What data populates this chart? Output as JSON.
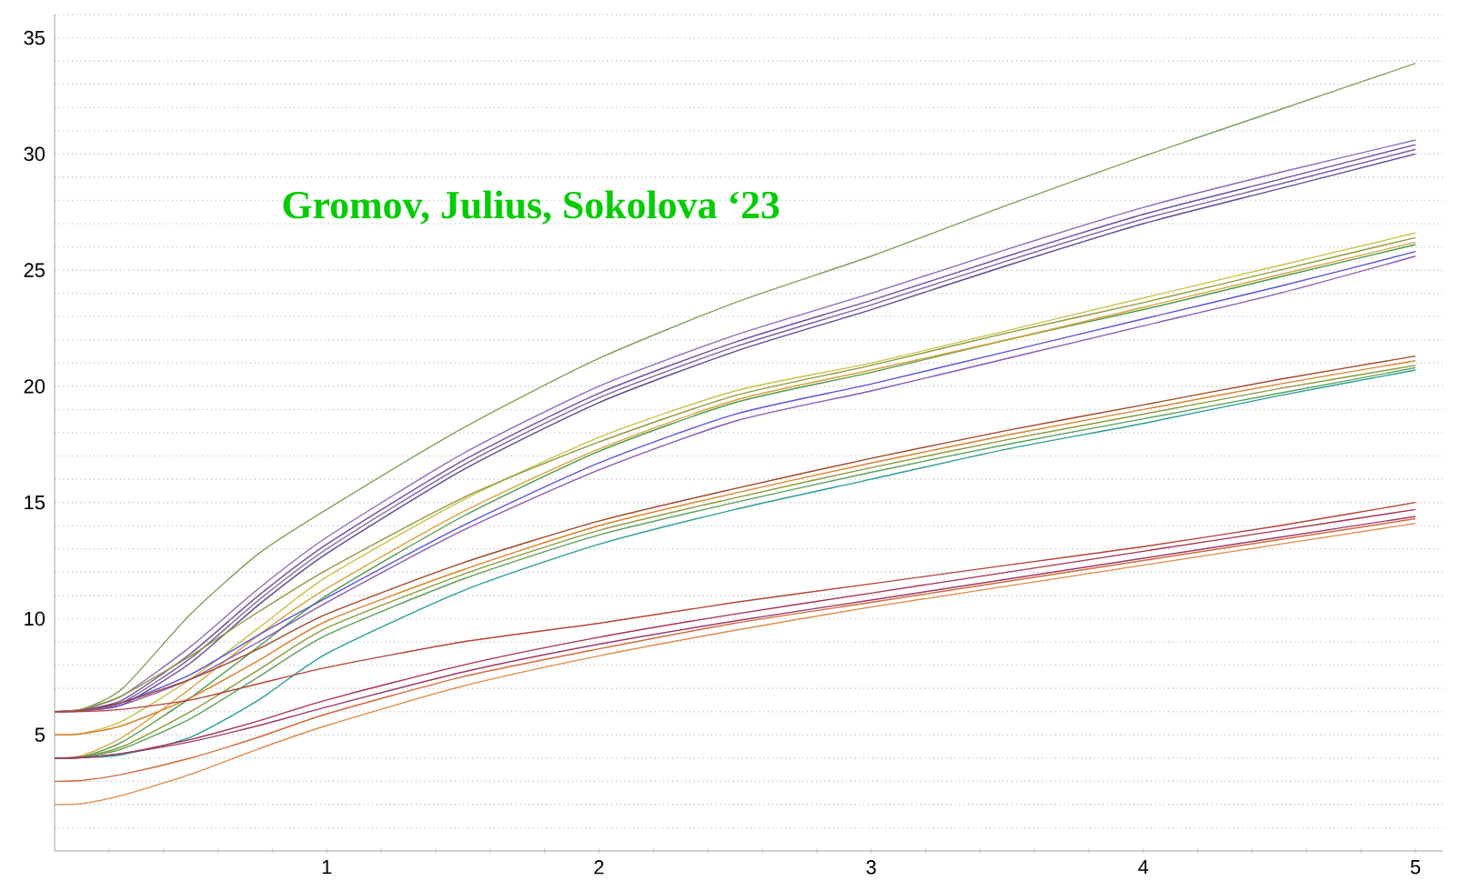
{
  "chart_data": {
    "type": "line",
    "title": "Gromov, Julius, Sokolova ‘23",
    "x": [
      0,
      0.1,
      0.25,
      0.5,
      0.75,
      1,
      1.5,
      2,
      2.5,
      3,
      3.5,
      4,
      4.5,
      5
    ],
    "xlim": [
      0,
      5.1
    ],
    "ylim": [
      0,
      36
    ],
    "xticks": [
      {
        "value": 0.2,
        "label": null
      },
      {
        "value": 0.4,
        "label": null
      },
      {
        "value": 0.6,
        "label": null
      },
      {
        "value": 0.8,
        "label": null
      },
      1,
      {
        "value": 1.2,
        "label": null
      },
      {
        "value": 1.4,
        "label": null
      },
      {
        "value": 1.6,
        "label": null
      },
      {
        "value": 1.8,
        "label": null
      },
      2,
      {
        "value": 2.2,
        "label": null
      },
      {
        "value": 2.4,
        "label": null
      },
      {
        "value": 2.6,
        "label": null
      },
      {
        "value": 2.8,
        "label": null
      },
      3,
      {
        "value": 3.2,
        "label": null
      },
      {
        "value": 3.4,
        "label": null
      },
      {
        "value": 3.6,
        "label": null
      },
      {
        "value": 3.8,
        "label": null
      },
      4,
      {
        "value": 4.2,
        "label": null
      },
      {
        "value": 4.4,
        "label": null
      },
      {
        "value": 4.6,
        "label": null
      },
      {
        "value": 4.8,
        "label": null
      },
      5
    ],
    "yticks": [
      {
        "value": 1,
        "label": null
      },
      {
        "value": 2,
        "label": null
      },
      {
        "value": 3,
        "label": null
      },
      {
        "value": 4,
        "label": null
      },
      5,
      {
        "value": 6,
        "label": null
      },
      {
        "value": 7,
        "label": null
      },
      {
        "value": 8,
        "label": null
      },
      {
        "value": 9,
        "label": null
      },
      10,
      {
        "value": 11,
        "label": null
      },
      {
        "value": 12,
        "label": null
      },
      {
        "value": 13,
        "label": null
      },
      {
        "value": 14,
        "label": null
      },
      15,
      {
        "value": 16,
        "label": null
      },
      {
        "value": 17,
        "label": null
      },
      {
        "value": 18,
        "label": null
      },
      {
        "value": 19,
        "label": null
      },
      20,
      {
        "value": 21,
        "label": null
      },
      {
        "value": 22,
        "label": null
      },
      {
        "value": 23,
        "label": null
      },
      {
        "value": 24,
        "label": null
      },
      25,
      {
        "value": 26,
        "label": null
      },
      {
        "value": 27,
        "label": null
      },
      {
        "value": 28,
        "label": null
      },
      {
        "value": 29,
        "label": null
      },
      30,
      {
        "value": 31,
        "label": null
      },
      {
        "value": 32,
        "label": null
      },
      {
        "value": 33,
        "label": null
      },
      {
        "value": 34,
        "label": null
      },
      35,
      {
        "value": 36,
        "label": null
      }
    ],
    "grid": "y",
    "marker": "none",
    "line_style": "solid",
    "series": [
      {
        "color": "#7fa35a",
        "values": [
          6,
          6.1,
          7.0,
          10.2,
          12.8,
          14.7,
          18.2,
          21.2,
          23.6,
          25.6,
          27.8,
          29.9,
          31.9,
          33.9
        ]
      },
      {
        "color": "#8a6bb8",
        "values": [
          6,
          6.1,
          6.7,
          8.8,
          11.3,
          13.5,
          17.1,
          20.0,
          22.2,
          24.0,
          25.9,
          27.7,
          29.2,
          30.6
        ]
      },
      {
        "color": "#6a52a3",
        "values": [
          6,
          6.08,
          6.5,
          8.5,
          11.0,
          13.2,
          16.8,
          19.7,
          21.9,
          23.7,
          25.6,
          27.4,
          28.9,
          30.4
        ]
      },
      {
        "color": "#7e5fa8",
        "values": [
          6,
          6.06,
          6.4,
          8.3,
          10.8,
          13.0,
          16.6,
          19.5,
          21.7,
          23.5,
          25.4,
          27.2,
          28.7,
          30.2
        ]
      },
      {
        "color": "#5d4a96",
        "values": [
          6,
          6.05,
          6.3,
          8.1,
          10.6,
          12.8,
          16.4,
          19.3,
          21.5,
          23.3,
          25.2,
          27.0,
          28.5,
          30.0
        ]
      },
      {
        "color": "#c9c24a",
        "values": [
          5,
          5.05,
          5.6,
          7.4,
          9.6,
          11.8,
          15.1,
          17.8,
          19.8,
          21.0,
          22.4,
          23.8,
          25.2,
          26.6
        ]
      },
      {
        "color": "#8f9a3c",
        "values": [
          6,
          6.1,
          6.7,
          8.4,
          10.3,
          12.1,
          15.2,
          17.6,
          19.6,
          20.9,
          22.3,
          23.6,
          25.0,
          26.4
        ]
      },
      {
        "color": "#4f9a4a",
        "values": [
          4,
          4.05,
          4.7,
          6.6,
          8.8,
          11.0,
          14.4,
          17.2,
          19.3,
          20.6,
          22.0,
          23.3,
          24.7,
          26.1
        ]
      },
      {
        "color": "#d9a23a",
        "values": [
          4,
          4.1,
          4.9,
          7.0,
          9.3,
          11.3,
          14.6,
          17.3,
          19.4,
          20.7,
          22.0,
          23.4,
          24.8,
          26.2
        ]
      },
      {
        "color": "#5a55d6",
        "values": [
          6,
          6.05,
          6.4,
          7.6,
          9.3,
          10.9,
          14.0,
          16.7,
          18.8,
          20.1,
          21.5,
          22.9,
          24.3,
          25.8
        ]
      },
      {
        "color": "#8a58b8",
        "values": [
          6,
          6.02,
          6.3,
          7.4,
          9.0,
          10.7,
          13.8,
          16.4,
          18.5,
          19.8,
          21.2,
          22.6,
          24.0,
          25.6
        ]
      },
      {
        "color": "#a0452a",
        "values": [
          6,
          6.05,
          6.4,
          7.4,
          8.7,
          10.2,
          12.4,
          14.2,
          15.6,
          16.9,
          18.1,
          19.2,
          20.3,
          21.3
        ]
      },
      {
        "color": "#d9822b",
        "values": [
          5,
          5.05,
          5.4,
          6.6,
          8.2,
          9.9,
          12.1,
          14.0,
          15.4,
          16.7,
          17.9,
          19.0,
          20.1,
          21.1
        ]
      },
      {
        "color": "#8a9a3a",
        "values": [
          4,
          4.05,
          4.5,
          6.0,
          7.8,
          9.6,
          11.9,
          13.8,
          15.2,
          16.5,
          17.7,
          18.8,
          19.9,
          20.9
        ]
      },
      {
        "color": "#5aa05a",
        "values": [
          4,
          4.04,
          4.4,
          5.7,
          7.5,
          9.3,
          11.7,
          13.6,
          15.0,
          16.3,
          17.5,
          18.6,
          19.7,
          20.8
        ]
      },
      {
        "color": "#2a9d9a",
        "values": [
          4,
          4.02,
          4.15,
          4.9,
          6.5,
          8.5,
          11.2,
          13.2,
          14.7,
          16.0,
          17.3,
          18.4,
          19.6,
          20.7
        ]
      },
      {
        "color": "#b5443a",
        "values": [
          6,
          6.0,
          6.1,
          6.5,
          7.2,
          7.9,
          9.0,
          9.8,
          10.7,
          11.5,
          12.3,
          13.1,
          14.0,
          15.0
        ]
      },
      {
        "color": "#a83250",
        "values": [
          4,
          4.02,
          4.2,
          4.8,
          5.6,
          6.5,
          8.0,
          9.2,
          10.2,
          11.1,
          12.0,
          12.9,
          13.8,
          14.7
        ]
      },
      {
        "color": "#9b3a6b",
        "values": [
          4,
          4.02,
          4.2,
          4.7,
          5.4,
          6.2,
          7.7,
          8.9,
          9.9,
          10.8,
          11.7,
          12.6,
          13.5,
          14.4
        ]
      },
      {
        "color": "#d2693a",
        "values": [
          3,
          3.03,
          3.3,
          4.0,
          4.9,
          5.9,
          7.5,
          8.7,
          9.8,
          10.7,
          11.6,
          12.5,
          13.4,
          14.3
        ]
      },
      {
        "color": "#e08a4c",
        "values": [
          2,
          2.04,
          2.4,
          3.3,
          4.4,
          5.4,
          7.1,
          8.4,
          9.5,
          10.5,
          11.4,
          12.3,
          13.2,
          14.1
        ]
      }
    ]
  }
}
